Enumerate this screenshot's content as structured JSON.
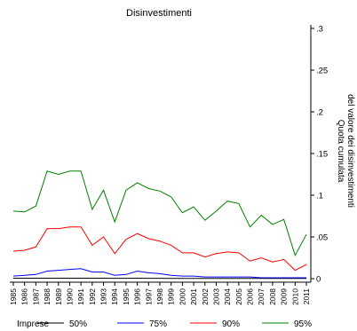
{
  "chart_data": {
    "type": "line",
    "title": "Disinvestimenti",
    "xlabel": "",
    "ylabel": "Quota cumulata del valore dei disinvestimenti",
    "ylabel_lines": [
      "Quota cumulata",
      "del valore dei disinvestimenti"
    ],
    "ylim": [
      0,
      0.3
    ],
    "xlim": [
      1985,
      2011
    ],
    "y_ticks": [
      0,
      0.05,
      0.1,
      0.15,
      0.2,
      0.25,
      0.3
    ],
    "y_tick_labels": [
      "0",
      ".05",
      ".1",
      ".15",
      ".2",
      ".25",
      ".3"
    ],
    "y_axis_position": "right",
    "grid": false,
    "x": [
      1985,
      1986,
      1987,
      1988,
      1989,
      1990,
      1991,
      1992,
      1993,
      1994,
      1995,
      1996,
      1997,
      1998,
      1999,
      2000,
      2001,
      2002,
      2003,
      2004,
      2005,
      2006,
      2007,
      2008,
      2009,
      2010,
      2011
    ],
    "x_tick_labels": [
      "1985",
      "1986",
      "1987",
      "1988",
      "1989",
      "1990",
      "1991",
      "1992",
      "1993",
      "1994",
      "1995",
      "1996",
      "1997",
      "1998",
      "1999",
      "2000",
      "2001",
      "2002",
      "2003",
      "2004",
      "2005",
      "2006",
      "2007",
      "2008",
      "2009",
      "2010",
      "2011"
    ],
    "legend_title": "Imprese",
    "legend_position": "bottom",
    "series": [
      {
        "name": "50%",
        "color": "#000000",
        "values": [
          0.0005,
          0.0005,
          0.0005,
          0.0006,
          0.0006,
          0.0006,
          0.0006,
          0.0005,
          0.0005,
          0.0004,
          0.0004,
          0.0005,
          0.0004,
          0.0004,
          0.0003,
          0.0003,
          0.0003,
          0.0002,
          0.0002,
          0.0002,
          0.0002,
          0.0002,
          0.0002,
          0.0002,
          0.0002,
          0.0002,
          0.0002
        ]
      },
      {
        "name": "75%",
        "color": "#0000ff",
        "values": [
          0.003,
          0.004,
          0.005,
          0.009,
          0.01,
          0.011,
          0.012,
          0.008,
          0.008,
          0.004,
          0.005,
          0.009,
          0.007,
          0.006,
          0.004,
          0.003,
          0.003,
          0.002,
          0.002,
          0.002,
          0.002,
          0.002,
          0.001,
          0.001,
          0.001,
          0.001,
          0.001
        ]
      },
      {
        "name": "90%",
        "color": "#ff0000",
        "values": [
          0.033,
          0.034,
          0.038,
          0.06,
          0.06,
          0.062,
          0.062,
          0.04,
          0.05,
          0.03,
          0.047,
          0.054,
          0.048,
          0.045,
          0.04,
          0.031,
          0.031,
          0.026,
          0.03,
          0.032,
          0.031,
          0.021,
          0.025,
          0.02,
          0.023,
          0.01,
          0.017
        ]
      },
      {
        "name": "95%",
        "color": "#008000",
        "values": [
          0.081,
          0.08,
          0.087,
          0.129,
          0.125,
          0.129,
          0.129,
          0.083,
          0.106,
          0.068,
          0.106,
          0.115,
          0.108,
          0.105,
          0.098,
          0.079,
          0.086,
          0.07,
          0.081,
          0.093,
          0.09,
          0.062,
          0.076,
          0.065,
          0.071,
          0.028,
          0.053
        ]
      }
    ]
  }
}
